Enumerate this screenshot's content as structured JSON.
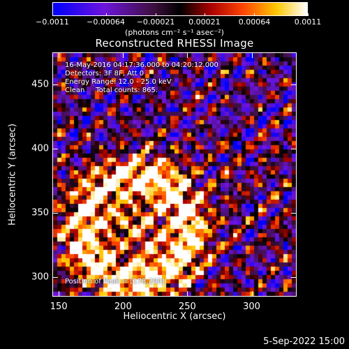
{
  "chart_data": {
    "type": "heatmap",
    "title": "Reconstructed RHESSI Image",
    "xlabel": "Heliocentric X (arcsec)",
    "ylabel": "Heliocentric Y (arcsec)",
    "xlim": [
      145,
      335
    ],
    "ylim": [
      285,
      475
    ],
    "xticks": [
      150,
      200,
      250,
      300
    ],
    "yticks": [
      300,
      350,
      400,
      450
    ],
    "colorbar": {
      "units": "(photons cm⁻² s⁻¹ asec⁻²)",
      "range": [
        -0.0011,
        0.0011
      ],
      "ticks": [
        -0.0011,
        -0.00064,
        -0.00021,
        0.00021,
        0.00064,
        0.0011
      ],
      "tick_labels": [
        "−0.0011",
        "−0.00064",
        "−0.00021",
        "0.00021",
        "0.00064",
        "0.0011"
      ]
    },
    "annotations": {
      "time_range": "16-May-2016 04:17:36.000 to 04:20:12.000",
      "detectors": "Detectors: 3F 8F, Att 0",
      "energy": "Energy Range: 12.0 - 25.0 keV",
      "method_counts": "Clean     Total counts: 865.",
      "peak": "Position of Peak = [178,290]"
    },
    "peak_position": [
      178,
      290
    ],
    "grid": false
  },
  "footer": {
    "date": "5-Sep-2022 15:00"
  }
}
